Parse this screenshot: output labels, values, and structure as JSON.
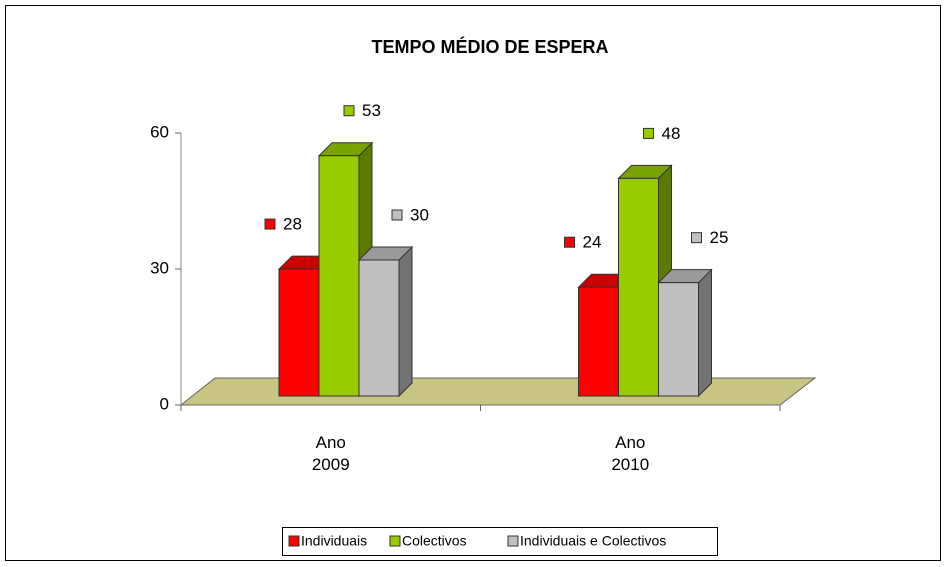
{
  "chart_data": {
    "type": "bar3d",
    "title": "TEMPO MÉDIO DE ESPERA",
    "categories": [
      "Ano 2009",
      "Ano 2010"
    ],
    "series": [
      {
        "name": "Individuais",
        "color": "#ff0000",
        "values": [
          28,
          24
        ]
      },
      {
        "name": "Colectivos",
        "color": "#99cc00",
        "values": [
          53,
          48
        ]
      },
      {
        "name": "Individuais e Colectivos",
        "color": "#c0c0c0",
        "values": [
          30,
          25
        ]
      }
    ],
    "ylim": [
      0,
      60
    ],
    "yticks": [
      0,
      30,
      60
    ],
    "legend": "bottom"
  }
}
